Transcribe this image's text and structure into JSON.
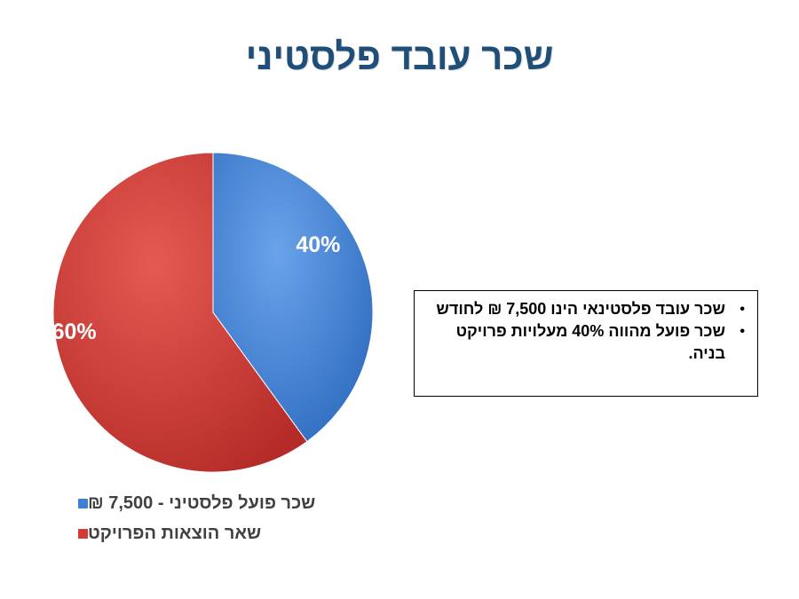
{
  "title": "שכר עובד פלסטיני",
  "chart_data": {
    "type": "pie",
    "categories": [
      "שכר פועל פלסטיני - 7,500 ₪",
      "שאר הוצאות הפרויקט"
    ],
    "values": [
      40,
      60
    ],
    "value_labels": [
      "40%",
      "60%"
    ],
    "colors": [
      "#3f7fd6",
      "#d23c36"
    ],
    "legend_position": "bottom"
  },
  "textbox": {
    "bullets": [
      "שכר עובד פלסטינאי הינו 7,500 ₪ לחודש",
      "שכר פועל מהווה 40% מעלויות פרויקט בניה."
    ],
    "bullet_symbol": "•"
  }
}
